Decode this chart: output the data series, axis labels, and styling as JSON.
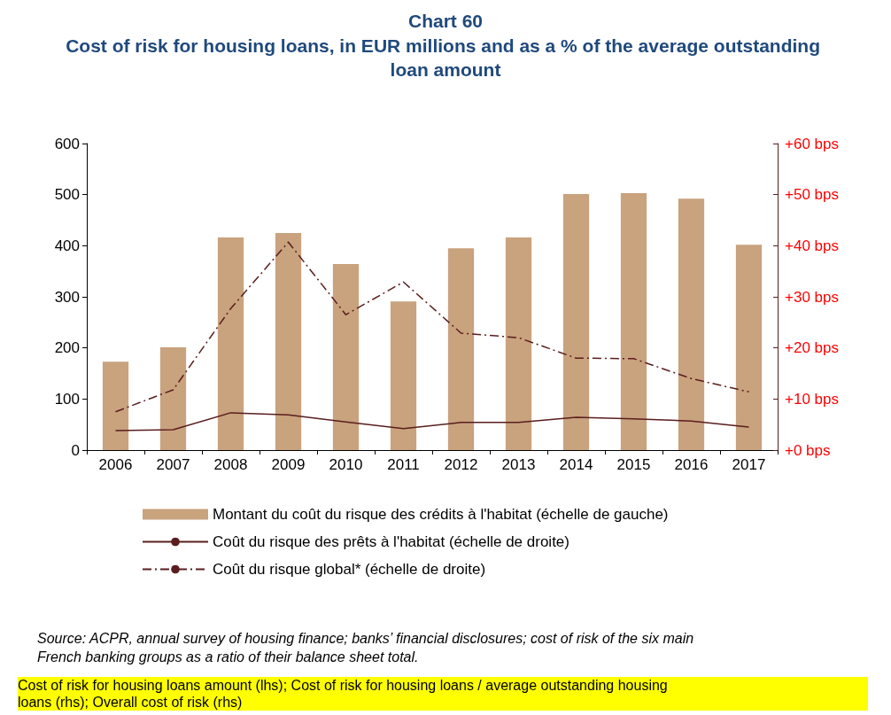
{
  "chart_data": {
    "type": "bar",
    "title": "Chart 60",
    "subtitle": "Cost of risk for housing loans, in EUR millions and as a % of the average outstanding loan amount",
    "categories": [
      "2006",
      "2007",
      "2008",
      "2009",
      "2010",
      "2011",
      "2012",
      "2013",
      "2014",
      "2015",
      "2016",
      "2017"
    ],
    "series": [
      {
        "name": "Montant du coût du risque des crédits à l'habitat (échelle de gauche)",
        "color": "#c9a27e",
        "values": [
          173,
          201,
          416,
          425,
          364,
          291,
          395,
          416,
          501,
          503,
          492,
          402
        ]
      },
      {
        "name": "Coût du risque des prêts à l'habitat (échelle de droite)",
        "type": "line",
        "axis": "y2",
        "color": "#5a1e1e",
        "line_style": "solid",
        "values": [
          3.8,
          4.0,
          7.3,
          6.9,
          5.5,
          4.2,
          5.4,
          5.4,
          6.4,
          6.1,
          5.7,
          4.5
        ]
      },
      {
        "name": "Coût du risque global* (échelle de droite)",
        "type": "line",
        "axis": "y2",
        "color": "#5a1e1e",
        "line_style": "dashed",
        "values": [
          7.5,
          11.8,
          27.7,
          40.7,
          26.5,
          32.9,
          22.9,
          22.0,
          18.0,
          17.9,
          14.0,
          11.4
        ]
      }
    ],
    "ylim": [
      0,
      600
    ],
    "yticks": [
      0,
      100,
      200,
      300,
      400,
      500,
      600
    ],
    "y2lim": [
      0,
      60
    ],
    "y2ticks": [
      {
        "value": 0,
        "label": "+0 bps"
      },
      {
        "value": 10,
        "label": "+10 bps"
      },
      {
        "value": 20,
        "label": "+20 bps"
      },
      {
        "value": 30,
        "label": "+30 bps"
      },
      {
        "value": 40,
        "label": "+40 bps"
      },
      {
        "value": 50,
        "label": "+50 bps"
      },
      {
        "value": 60,
        "label": "+60 bps"
      }
    ],
    "grid": false,
    "legend": "bottom",
    "marker": "none",
    "annotations": [
      "Source: ACPR, annual survey of housing finance; banks’ financial disclosures; cost of risk of the six main French banking groups as a ratio of their balance sheet total.",
      "Cost of risk for housing loans amount (lhs); Cost of risk for housing loans / average outstanding housing loans (rhs); Overall cost of risk (rhs)"
    ]
  }
}
